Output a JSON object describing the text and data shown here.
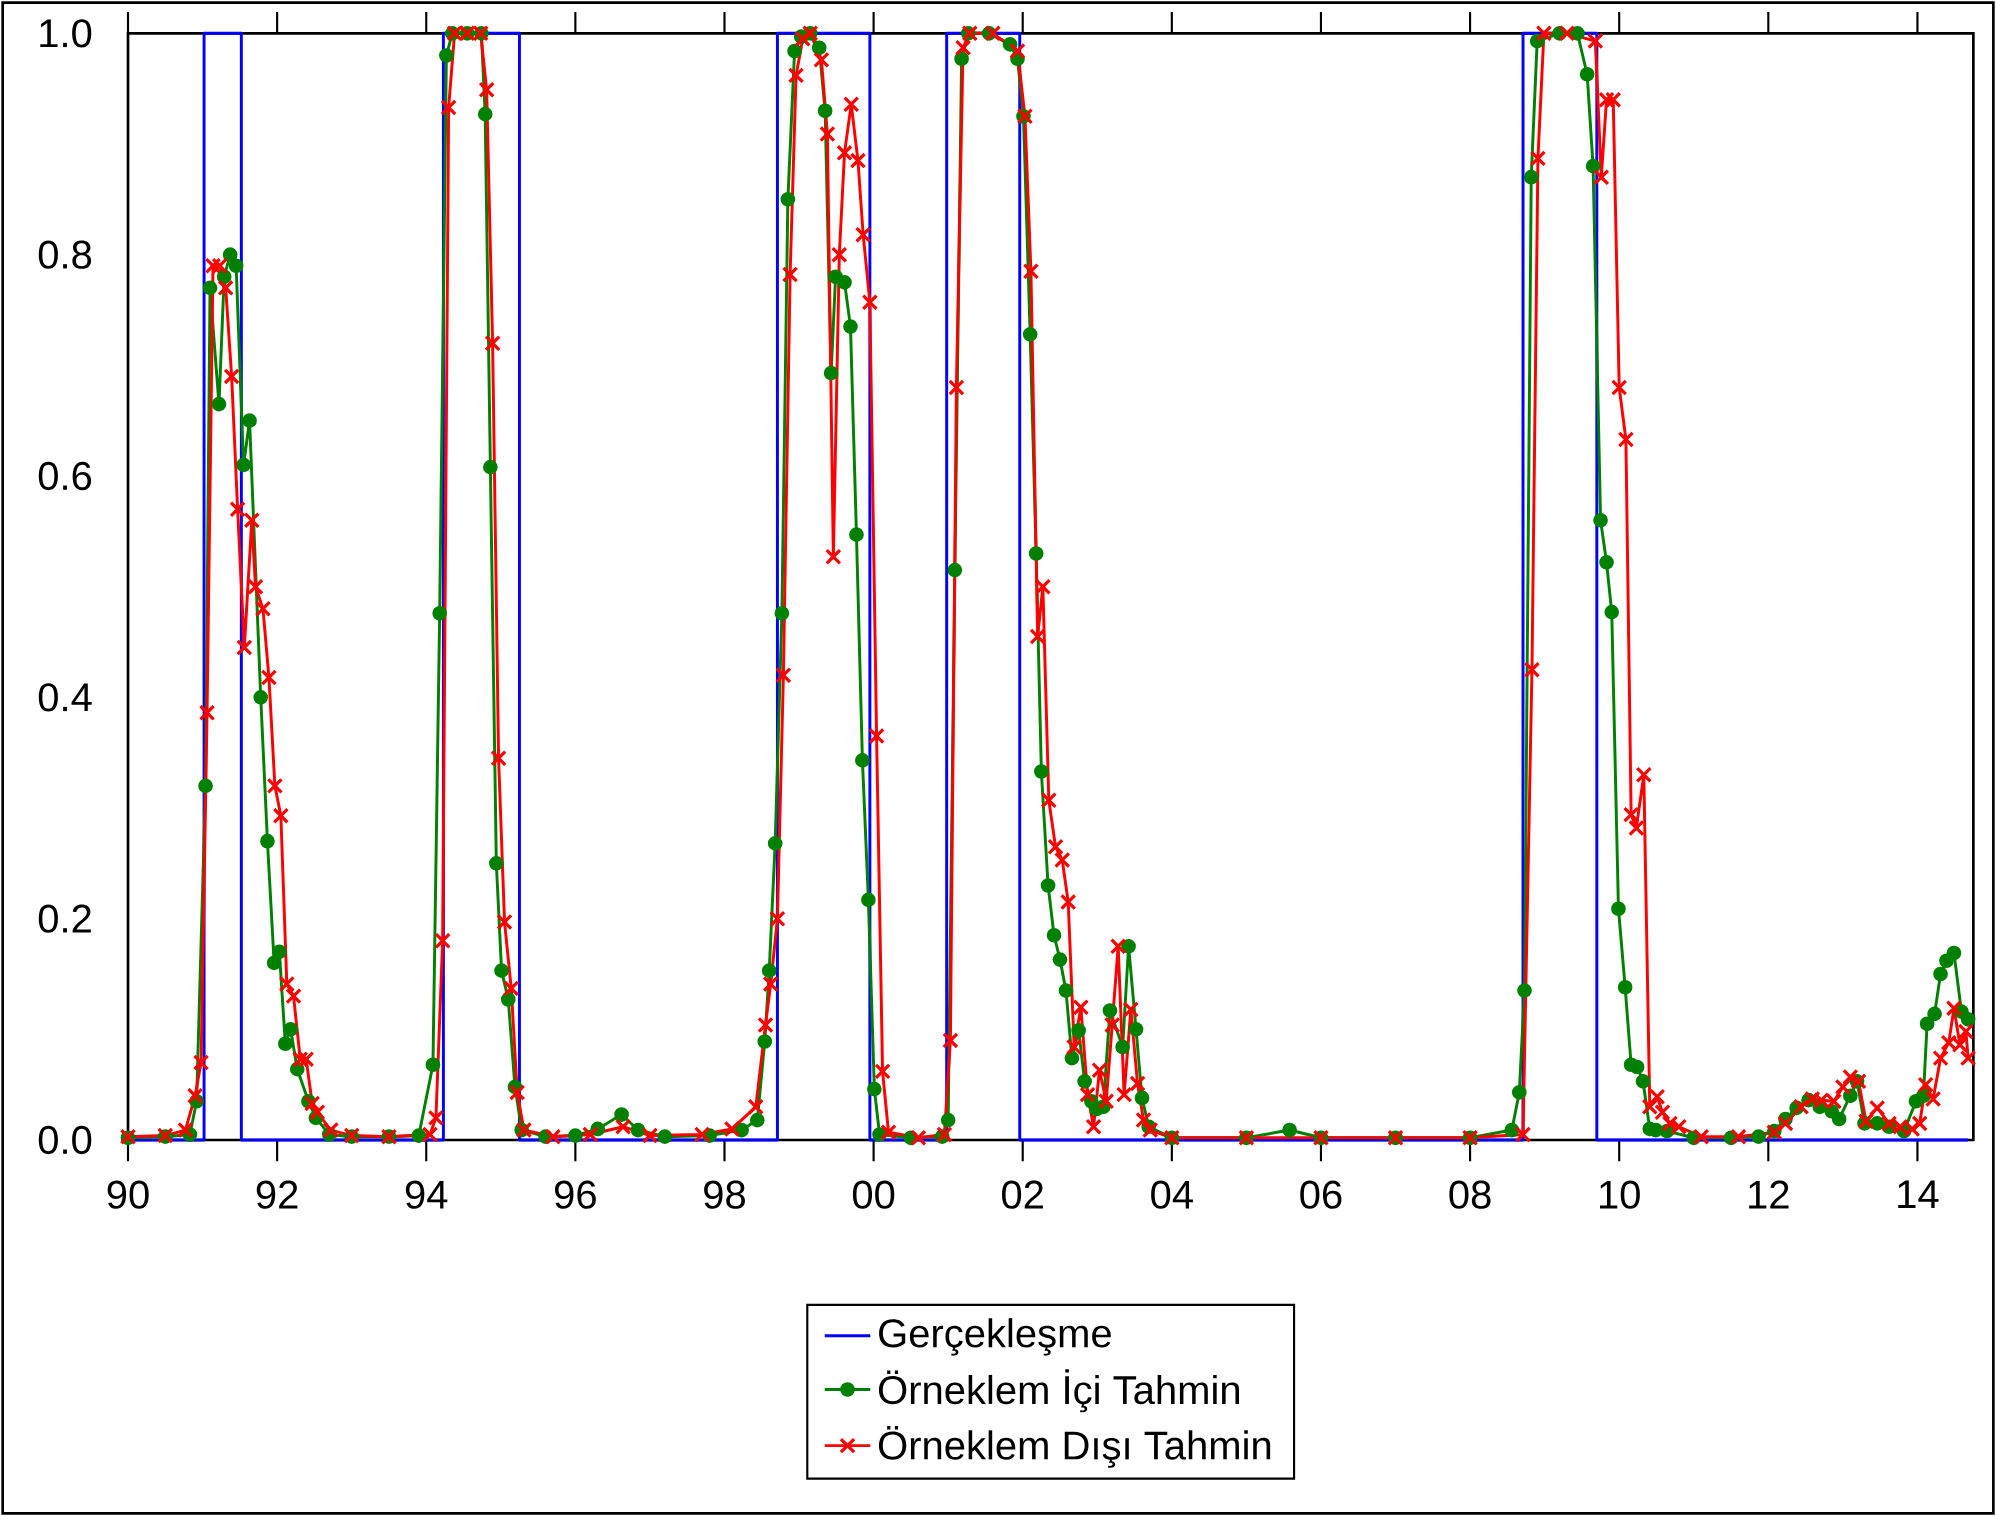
{
  "chart_data": {
    "type": "line",
    "xlim": [
      1990,
      2014.75
    ],
    "ylim": [
      0,
      1
    ],
    "xticks": [
      {
        "value": 1990,
        "label": "90"
      },
      {
        "value": 1992,
        "label": "92"
      },
      {
        "value": 1994,
        "label": "94"
      },
      {
        "value": 1996,
        "label": "96"
      },
      {
        "value": 1998,
        "label": "98"
      },
      {
        "value": 2000,
        "label": "00"
      },
      {
        "value": 2002,
        "label": "02"
      },
      {
        "value": 2004,
        "label": "04"
      },
      {
        "value": 2006,
        "label": "06"
      },
      {
        "value": 2008,
        "label": "08"
      },
      {
        "value": 2010,
        "label": "10"
      },
      {
        "value": 2012,
        "label": "12"
      },
      {
        "value": 2014,
        "label": "14"
      }
    ],
    "yticks": [
      {
        "value": 0,
        "label": "0.0"
      },
      0.2,
      0.4,
      0.6,
      0.8,
      {
        "value": 1,
        "label": "1.0"
      }
    ],
    "legend": "bottom",
    "line_style": "solid",
    "series": [
      {
        "name": "Gerçekleşme",
        "type": "step",
        "color": "#0000ff",
        "marker": "none",
        "x": [
          1990,
          1991.02,
          1991.52,
          1994.23,
          1995.25,
          1998.71,
          1999.95,
          2000.98,
          2001.96,
          2008.71,
          2009.7,
          2014.68
        ],
        "values": [
          0,
          1,
          0,
          1,
          0,
          1,
          0,
          1,
          0,
          1,
          0,
          0
        ]
      },
      {
        "name": "Örneklem İçi Tahmin",
        "color": "#008000",
        "marker": "circle",
        "x": [
          1990.0,
          1990.5,
          1990.83,
          1990.92,
          1991.04,
          1991.1,
          1991.22,
          1991.29,
          1991.37,
          1991.45,
          1991.55,
          1991.63,
          1991.78,
          1991.87,
          1991.96,
          1992.03,
          1992.11,
          1992.18,
          1992.27,
          1992.42,
          1992.52,
          1992.7,
          1993.0,
          1993.5,
          1993.9,
          1994.09,
          1994.18,
          1994.27,
          1994.35,
          1994.55,
          1994.74,
          1994.79,
          1994.86,
          1994.94,
          1995.01,
          1995.1,
          1995.19,
          1995.28,
          1995.6,
          1996.0,
          1996.3,
          1996.62,
          1996.84,
          1997.2,
          1997.8,
          1998.23,
          1998.44,
          1998.54,
          1998.6,
          1998.68,
          1998.77,
          1998.85,
          1998.94,
          1999.03,
          1999.15,
          1999.27,
          1999.35,
          1999.43,
          1999.49,
          1999.61,
          1999.69,
          1999.77,
          1999.85,
          1999.93,
          2000.01,
          2000.08,
          2000.5,
          2000.92,
          2001.0,
          2001.09,
          2001.18,
          2001.27,
          2001.55,
          2001.83,
          2001.93,
          2002.01,
          2002.1,
          2002.18,
          2002.25,
          2002.34,
          2002.42,
          2002.5,
          2002.58,
          2002.66,
          2002.75,
          2002.83,
          2002.92,
          2002.99,
          2003.08,
          2003.17,
          2003.34,
          2003.42,
          2003.52,
          2003.6,
          2003.69,
          2004.0,
          2005.0,
          2005.58,
          2006.0,
          2007.0,
          2008.0,
          2008.56,
          2008.66,
          2008.73,
          2008.82,
          2008.9,
          2009.2,
          2009.44,
          2009.57,
          2009.65,
          2009.75,
          2009.83,
          2009.9,
          2009.99,
          2010.08,
          2010.16,
          2010.24,
          2010.32,
          2010.41,
          2010.49,
          2010.64,
          2011.0,
          2011.5,
          2011.87,
          2012.08,
          2012.23,
          2012.38,
          2012.54,
          2012.69,
          2012.85,
          2012.95,
          2013.1,
          2013.19,
          2013.29,
          2013.46,
          2013.62,
          2013.82,
          2013.98,
          2014.08,
          2014.13,
          2014.23,
          2014.31,
          2014.39,
          2014.49,
          2014.59,
          2014.68
        ],
        "values": [
          0.002,
          0.003,
          0.005,
          0.035,
          0.32,
          0.77,
          0.665,
          0.78,
          0.8,
          0.79,
          0.61,
          0.65,
          0.4,
          0.27,
          0.16,
          0.17,
          0.087,
          0.1,
          0.064,
          0.035,
          0.02,
          0.005,
          0.003,
          0.003,
          0.004,
          0.068,
          0.476,
          0.98,
          1.0,
          1.0,
          1.0,
          0.927,
          0.608,
          0.25,
          0.153,
          0.127,
          0.048,
          0.009,
          0.003,
          0.004,
          0.01,
          0.023,
          0.009,
          0.003,
          0.004,
          0.009,
          0.018,
          0.089,
          0.153,
          0.268,
          0.476,
          0.85,
          0.984,
          0.997,
          1.0,
          0.987,
          0.93,
          0.693,
          0.78,
          0.775,
          0.735,
          0.547,
          0.343,
          0.217,
          0.046,
          0.005,
          0.002,
          0.003,
          0.018,
          0.515,
          0.977,
          1.0,
          1.0,
          0.99,
          0.977,
          0.925,
          0.728,
          0.53,
          0.333,
          0.23,
          0.185,
          0.163,
          0.135,
          0.074,
          0.099,
          0.053,
          0.035,
          0.028,
          0.03,
          0.117,
          0.084,
          0.175,
          0.1,
          0.038,
          0.012,
          0.002,
          0.002,
          0.009,
          0.002,
          0.002,
          0.002,
          0.009,
          0.043,
          0.135,
          0.87,
          0.993,
          1.0,
          1.0,
          0.963,
          0.88,
          0.56,
          0.522,
          0.477,
          0.209,
          0.138,
          0.068,
          0.066,
          0.053,
          0.01,
          0.009,
          0.008,
          0.002,
          0.002,
          0.003,
          0.008,
          0.019,
          0.029,
          0.036,
          0.03,
          0.026,
          0.019,
          0.04,
          0.053,
          0.015,
          0.015,
          0.012,
          0.008,
          0.035,
          0.04,
          0.105,
          0.114,
          0.15,
          0.162,
          0.169,
          0.116,
          0.109
        ]
      },
      {
        "name": "Örneklem Dışı Tahmin",
        "color": "#ff0000",
        "marker": "cross",
        "x": [
          1990.0,
          1990.5,
          1990.77,
          1990.9,
          1990.98,
          1991.06,
          1991.14,
          1991.23,
          1991.31,
          1991.39,
          1991.47,
          1991.56,
          1991.66,
          1991.71,
          1991.81,
          1991.89,
          1991.97,
          1992.05,
          1992.13,
          1992.22,
          1992.31,
          1992.39,
          1992.47,
          1992.54,
          1992.72,
          1993.0,
          1993.5,
          1994.05,
          1994.13,
          1994.22,
          1994.3,
          1994.38,
          1994.55,
          1994.73,
          1994.81,
          1994.89,
          1994.97,
          1995.05,
          1995.14,
          1995.22,
          1995.31,
          1995.7,
          1996.2,
          1996.64,
          1997.0,
          1997.7,
          1998.1,
          1998.42,
          1998.55,
          1998.62,
          1998.71,
          1998.79,
          1998.88,
          1998.96,
          1999.05,
          1999.15,
          1999.3,
          1999.38,
          1999.46,
          1999.54,
          1999.61,
          1999.7,
          1999.79,
          1999.86,
          1999.95,
          2000.04,
          2000.12,
          2000.2,
          2000.6,
          2000.95,
          2001.03,
          2001.11,
          2001.2,
          2001.29,
          2001.6,
          2001.93,
          2002.03,
          2002.11,
          2002.2,
          2002.27,
          2002.35,
          2002.44,
          2002.53,
          2002.61,
          2002.69,
          2002.78,
          2002.87,
          2002.95,
          2003.03,
          2003.12,
          2003.2,
          2003.28,
          2003.36,
          2003.45,
          2003.54,
          2003.62,
          2003.71,
          2004.0,
          2005.0,
          2006.0,
          2007.0,
          2008.0,
          2008.71,
          2008.83,
          2008.91,
          2008.99,
          2009.3,
          2009.68,
          2009.76,
          2009.83,
          2009.92,
          2010.0,
          2010.09,
          2010.16,
          2010.23,
          2010.33,
          2010.41,
          2010.51,
          2010.58,
          2010.68,
          2010.8,
          2011.1,
          2011.6,
          2012.08,
          2012.23,
          2012.44,
          2012.59,
          2012.71,
          2012.88,
          2013.0,
          2013.1,
          2013.21,
          2013.31,
          2013.46,
          2013.62,
          2013.77,
          2013.93,
          2014.03,
          2014.11,
          2014.21,
          2014.31,
          2014.42,
          2014.49,
          2014.57,
          2014.65,
          2014.68
        ],
        "values": [
          0.003,
          0.004,
          0.009,
          0.04,
          0.07,
          0.386,
          0.79,
          0.79,
          0.77,
          0.69,
          0.57,
          0.445,
          0.56,
          0.5,
          0.48,
          0.418,
          0.32,
          0.293,
          0.141,
          0.13,
          0.073,
          0.073,
          0.033,
          0.025,
          0.009,
          0.004,
          0.003,
          0.005,
          0.02,
          0.18,
          0.933,
          1.0,
          1.0,
          1.0,
          0.949,
          0.72,
          0.345,
          0.197,
          0.137,
          0.043,
          0.009,
          0.003,
          0.005,
          0.012,
          0.004,
          0.005,
          0.01,
          0.03,
          0.104,
          0.141,
          0.2,
          0.42,
          0.782,
          0.962,
          0.995,
          1.0,
          0.976,
          0.909,
          0.527,
          0.8,
          0.892,
          0.936,
          0.885,
          0.818,
          0.757,
          0.365,
          0.062,
          0.007,
          0.002,
          0.005,
          0.09,
          0.68,
          0.987,
          1.0,
          1.0,
          0.984,
          0.925,
          0.785,
          0.455,
          0.5,
          0.307,
          0.265,
          0.253,
          0.215,
          0.084,
          0.12,
          0.041,
          0.012,
          0.063,
          0.035,
          0.104,
          0.175,
          0.041,
          0.118,
          0.051,
          0.018,
          0.009,
          0.002,
          0.002,
          0.002,
          0.002,
          0.002,
          0.005,
          0.425,
          0.887,
          1.0,
          1.0,
          0.993,
          0.87,
          0.94,
          0.94,
          0.68,
          0.633,
          0.294,
          0.282,
          0.33,
          0.03,
          0.039,
          0.025,
          0.015,
          0.012,
          0.003,
          0.003,
          0.007,
          0.015,
          0.03,
          0.037,
          0.036,
          0.035,
          0.048,
          0.057,
          0.053,
          0.017,
          0.029,
          0.015,
          0.012,
          0.01,
          0.015,
          0.05,
          0.037,
          0.074,
          0.088,
          0.119,
          0.086,
          0.098,
          0.074
        ]
      }
    ]
  }
}
